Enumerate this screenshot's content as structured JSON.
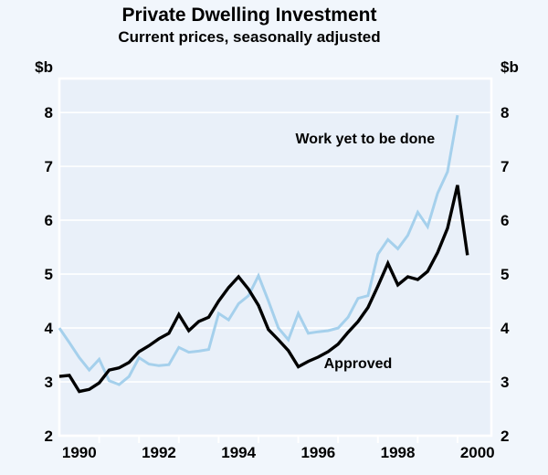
{
  "header": {
    "title": "Private Dwelling Investment",
    "subtitle": "Current prices, seasonally adjusted"
  },
  "y_axis": {
    "unit_left": "$b",
    "unit_right": "$b",
    "tick_values": [
      2,
      3,
      4,
      5,
      6,
      7,
      8
    ],
    "min": 2,
    "max": 8,
    "top_value": 8.63
  },
  "x_axis": {
    "year_labels": [
      "1990",
      "1992",
      "1994",
      "1996",
      "1998",
      "2000"
    ],
    "label_years": [
      1990,
      1992,
      1994,
      1996,
      1998,
      2000
    ],
    "tick_years": [
      1991,
      1992,
      1993,
      1994,
      1995,
      1996,
      1997,
      1998,
      1999,
      2000
    ],
    "start_year": 1990,
    "end_year_fraction": 2000.85
  },
  "colors": {
    "page_bg": "#f1f6fc",
    "plot_bg": "#e9f0f9",
    "grid": "#ffffff",
    "frame": "#ffffff",
    "text": "#000000",
    "approved_line": "#000000",
    "work_line": "#a5d0ec"
  },
  "chart_data": {
    "type": "line",
    "title": "Private Dwelling Investment",
    "subtitle": "Current prices, seasonally adjusted",
    "ylabel": "$b",
    "ylim": [
      2,
      8
    ],
    "grid": "horizontal-white",
    "frequency": "quarterly",
    "start_period": "1990 Q1",
    "series": [
      {
        "name": "Work yet to be done",
        "color_key": "work_line",
        "end_period": "2000 Q1",
        "values": [
          4.0,
          3.73,
          3.45,
          3.22,
          3.42,
          3.02,
          2.95,
          3.1,
          3.45,
          3.33,
          3.3,
          3.32,
          3.64,
          3.55,
          3.57,
          3.6,
          4.27,
          4.15,
          4.45,
          4.6,
          4.97,
          4.5,
          4.0,
          3.78,
          4.27,
          3.9,
          3.93,
          3.95,
          4.0,
          4.2,
          4.55,
          4.6,
          5.37,
          5.64,
          5.47,
          5.72,
          6.15,
          5.88,
          6.5,
          6.9,
          7.95
        ]
      },
      {
        "name": "Approved",
        "color_key": "approved_line",
        "end_period": "2000 Q2",
        "values": [
          3.1,
          3.12,
          2.82,
          2.86,
          2.98,
          3.22,
          3.26,
          3.36,
          3.56,
          3.67,
          3.8,
          3.9,
          4.25,
          3.95,
          4.12,
          4.2,
          4.5,
          4.75,
          4.95,
          4.72,
          4.42,
          3.97,
          3.78,
          3.58,
          3.28,
          3.38,
          3.46,
          3.56,
          3.7,
          3.92,
          4.12,
          4.38,
          4.78,
          5.2,
          4.8,
          4.95,
          4.9,
          5.05,
          5.4,
          5.85,
          6.65,
          5.35
        ]
      }
    ],
    "annotations": [
      {
        "text": "Work yet to be done",
        "series": "Work yet to be done",
        "x_year": 1997.68,
        "value": 7.5
      },
      {
        "text": "Approved",
        "series": "Approved",
        "x_year": 1997.5,
        "value": 3.33
      }
    ],
    "legend_position": "inline-labels"
  }
}
